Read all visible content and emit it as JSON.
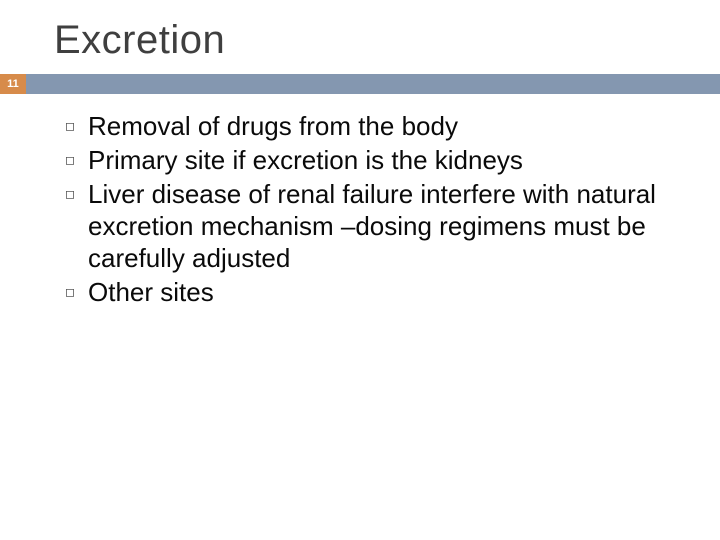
{
  "slide": {
    "title": "Excretion",
    "page_number": "11",
    "title_color": "#3f3f3f",
    "title_fontsize": 40,
    "bar_color": "#8497b0",
    "badge_color": "#d78b4a",
    "badge_text_color": "#ffffff",
    "background_color": "#ffffff",
    "body_fontsize": 26,
    "body_color": "#0a0a0a",
    "bullet_marker": "◻",
    "bullets": [
      "Removal of drugs from the body",
      "Primary site if excretion is the kidneys",
      "Liver disease of renal failure interfere with natural excretion mechanism –dosing regimens must be carefully adjusted",
      "Other sites"
    ]
  }
}
